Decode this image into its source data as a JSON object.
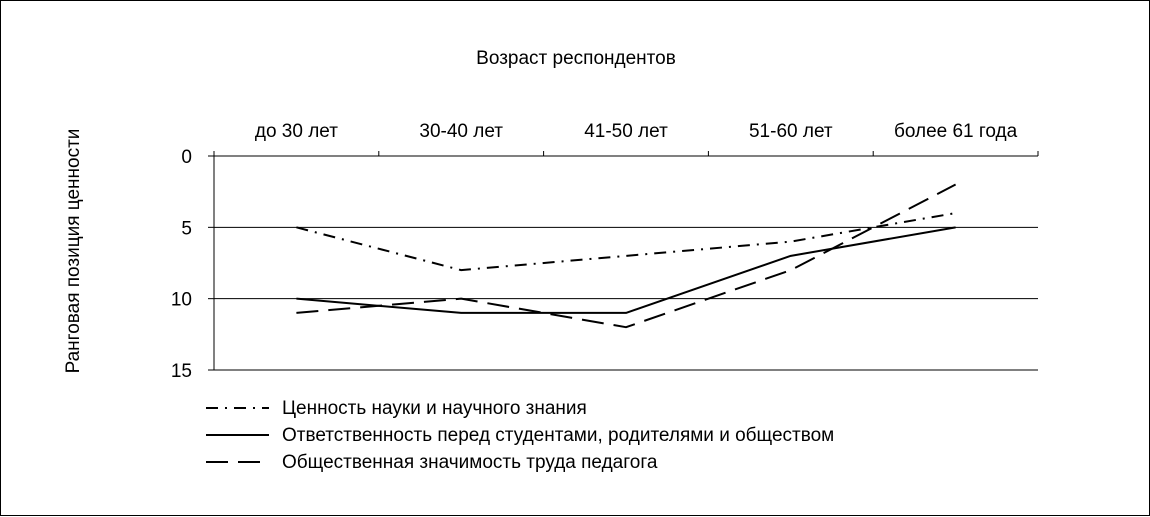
{
  "chart_data": {
    "type": "line",
    "title": "Возраст респондентов",
    "xlabel": "",
    "ylabel": "Ранговая позиция ценности",
    "categories": [
      "до 30  лет",
      "30-40 лет",
      "41-50 лет",
      "51-60 лет",
      "более 61 года"
    ],
    "x_axis_position": "top",
    "y_inverted": true,
    "ylim": [
      0,
      15
    ],
    "yticks": [
      0,
      5,
      10,
      15
    ],
    "grid": {
      "horizontal": true,
      "vertical": false
    },
    "legend_position": "bottom-left",
    "series": [
      {
        "name": "Ценность науки и научного знания",
        "values": [
          5,
          8,
          7,
          6,
          4
        ],
        "line_style": "dash-dot",
        "color": "#000000"
      },
      {
        "name": "Ответственность перед студентами, родителями и обществом",
        "values": [
          10,
          11,
          11,
          7,
          5
        ],
        "line_style": "solid",
        "color": "#000000"
      },
      {
        "name": "Общественная значимость труда педагога",
        "values": [
          11,
          10,
          12,
          8,
          2
        ],
        "line_style": "long-dash",
        "color": "#000000"
      }
    ]
  }
}
